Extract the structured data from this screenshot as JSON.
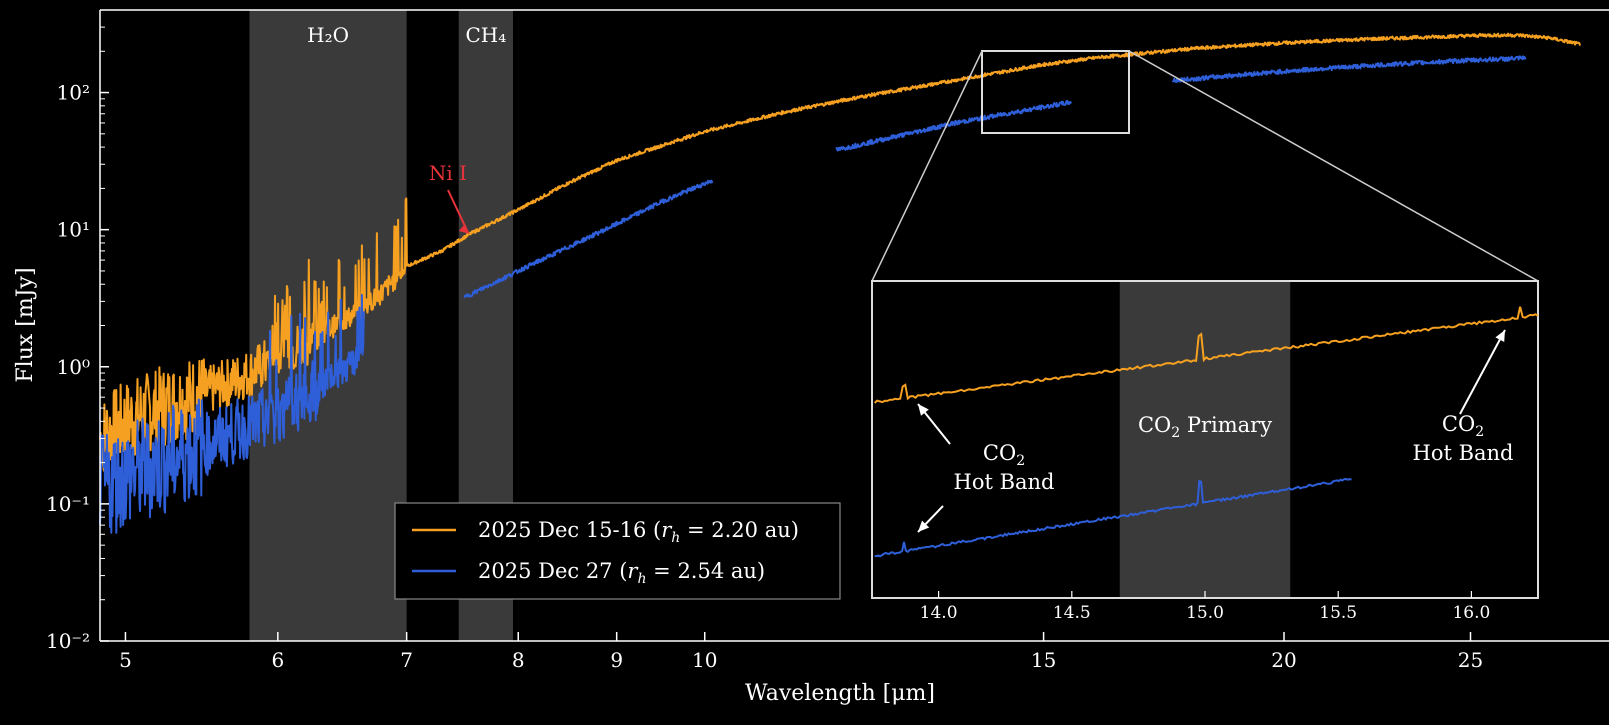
{
  "chart_data": {
    "type": "line",
    "title": "",
    "xlabel": "Wavelength [μm]",
    "ylabel": "Flux [mJy]",
    "xscale": "log",
    "yscale": "log",
    "xlim": [
      4.85,
      28.5
    ],
    "ylim": [
      0.01,
      400
    ],
    "x_ticks": [
      5,
      6,
      7,
      8,
      9,
      10,
      15,
      20,
      25
    ],
    "y_ticks": [
      {
        "value": 0.01,
        "label": "10⁻²"
      },
      {
        "value": 0.1,
        "label": "10⁻¹"
      },
      {
        "value": 1,
        "label": "10⁰"
      },
      {
        "value": 10,
        "label": "10¹"
      },
      {
        "value": 100,
        "label": "10²"
      }
    ],
    "grid": false,
    "legend_position": "bottom-center",
    "shaded_bands": [
      {
        "label": "H₂O",
        "x0": 5.8,
        "x1": 7.0
      },
      {
        "label": "CH₄",
        "x0": 7.45,
        "x1": 7.95
      }
    ],
    "annotations": [
      {
        "text": "Ni I",
        "x": 7.55,
        "y": 9.3,
        "color": "#e8333b"
      }
    ],
    "series": [
      {
        "name": "2025 Dec 15-16 (rh = 2.20 au)",
        "legend_main": "2025 Dec 15-16 (",
        "legend_r": "r",
        "legend_sub": "h",
        "legend_eq": " = 2.20 au)",
        "color": "#f5a020",
        "segments": [
          {
            "x": [
              4.85,
              5.0,
              5.2,
              5.5,
              5.8,
              6.0,
              6.3,
              6.6,
              6.8,
              7.0,
              7.3,
              7.55,
              8.0,
              8.5,
              9.0,
              10.0,
              11.0,
              12.0,
              13.0,
              14.0,
              15.0,
              16.0,
              17.0,
              18.0,
              20.0,
              22.0,
              24.0,
              25.5,
              26.5,
              27.5,
              28.5
            ],
            "y": [
              0.3,
              0.4,
              0.5,
              0.65,
              0.9,
              1.2,
              1.7,
              2.5,
              3.5,
              5.4,
              7.0,
              9.3,
              14,
              22,
              32,
              52,
              72,
              92,
              112,
              135,
              160,
              180,
              195,
              210,
              230,
              245,
              255,
              262,
              262,
              250,
              225
            ]
          }
        ]
      },
      {
        "name": "2025 Dec 27 (rh = 2.54 au)",
        "legend_main": "2025 Dec 27 (",
        "legend_r": "r",
        "legend_sub": "h",
        "legend_eq": " = 2.54 au)",
        "color": "#2f5fd8",
        "segments": [
          {
            "x": [
              4.85,
              5.0,
              5.3,
              5.6,
              6.0,
              6.3,
              6.65
            ],
            "y": [
              0.13,
              0.16,
              0.22,
              0.3,
              0.45,
              0.7,
              1.2
            ]
          },
          {
            "x": [
              7.5,
              8.0,
              8.5,
              9.0,
              9.5,
              10.1
            ],
            "y": [
              3.2,
              5.0,
              7.5,
              11,
              16,
              23
            ]
          },
          {
            "x": [
              11.7,
              12.5,
              13.5,
              14.5,
              15.5
            ],
            "y": [
              38,
              47,
              60,
              72,
              85
            ]
          },
          {
            "x": [
              17.5,
              19.0,
              21.0,
              23.0,
              25.0,
              26.7
            ],
            "y": [
              122,
              135,
              150,
              162,
              172,
              178
            ]
          }
        ]
      }
    ],
    "inset": {
      "xlim": [
        13.75,
        16.25
      ],
      "x_ticks": [
        "14.0",
        "14.5",
        "15.0",
        "15.5",
        "16.0"
      ],
      "x_tick_values": [
        14.0,
        14.5,
        15.0,
        15.5,
        16.0
      ],
      "primary_band": {
        "x0": 14.68,
        "x1": 15.32,
        "label": "CO₂ Primary",
        "label_main": "CO",
        "label_sub": "2",
        "label_rest": " Primary"
      },
      "hot_band_label_line1_main": "CO",
      "hot_band_label_line1_sub": "2",
      "hot_band_label_line2": "Hot Band"
    }
  }
}
